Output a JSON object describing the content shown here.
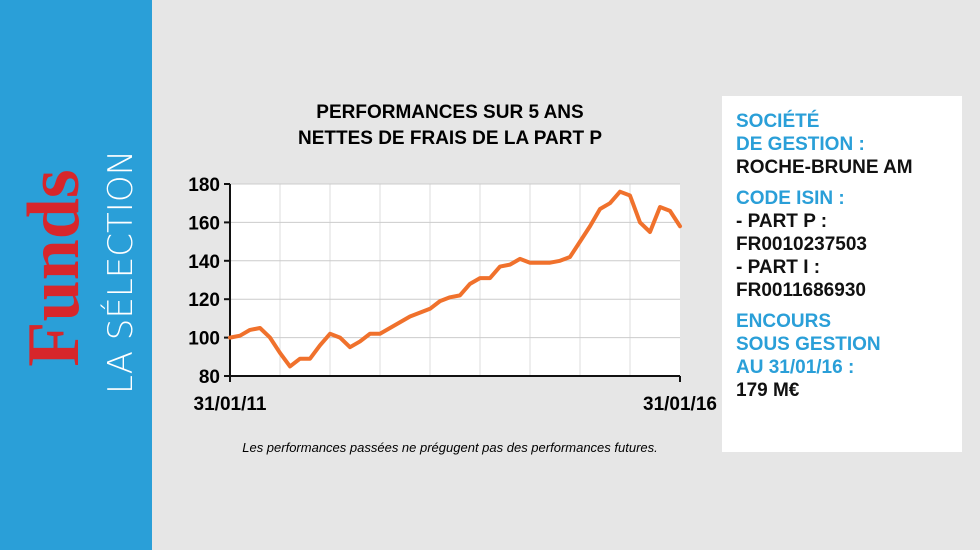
{
  "sidebar": {
    "brand": "Funds",
    "subtitle": "LA SÉLECTION"
  },
  "chart_data": {
    "type": "line",
    "title": [
      "PERFORMANCES SUR 5 ANS",
      "NETTES DE FRAIS DE LA PART P"
    ],
    "categories": [
      "31/01/11",
      null,
      null,
      null,
      null,
      null,
      null,
      null,
      null,
      null,
      null,
      null,
      null,
      null,
      null,
      null,
      null,
      null,
      null,
      null,
      null,
      null,
      null,
      null,
      null,
      null,
      null,
      null,
      null,
      null,
      null,
      null,
      null,
      null,
      null,
      null,
      null,
      null,
      null,
      null,
      null,
      null,
      null,
      null,
      null,
      "31/01/16"
    ],
    "values": [
      100,
      101,
      104,
      105,
      100,
      92,
      85,
      89,
      89,
      96,
      102,
      100,
      95,
      98,
      102,
      102,
      105,
      108,
      111,
      113,
      115,
      119,
      121,
      122,
      128,
      131,
      131,
      137,
      138,
      141,
      139,
      139,
      139,
      140,
      142,
      150,
      158,
      167,
      170,
      176,
      174,
      160,
      155,
      168,
      166,
      158
    ],
    "color": "#f0712c",
    "ylim": [
      80,
      180
    ],
    "yticks": [
      80,
      100,
      120,
      140,
      160,
      180
    ],
    "grid": true,
    "note": "Les performances passées ne prégugent pas des performances futures."
  },
  "info": {
    "sections": [
      {
        "heading": [
          "SOCIÉTÉ",
          "DE GESTION :"
        ],
        "lines": [
          "ROCHE-BRUNE AM"
        ]
      },
      {
        "heading": [
          "CODE ISIN :"
        ],
        "lines": [
          "- PART P :",
          "FR0010237503",
          "- PART I :",
          "FR0011686930"
        ]
      },
      {
        "heading": [
          "ENCOURS",
          "SOUS GESTION",
          "AU 31/01/16 :"
        ],
        "lines": [
          "179 M€"
        ]
      }
    ]
  }
}
